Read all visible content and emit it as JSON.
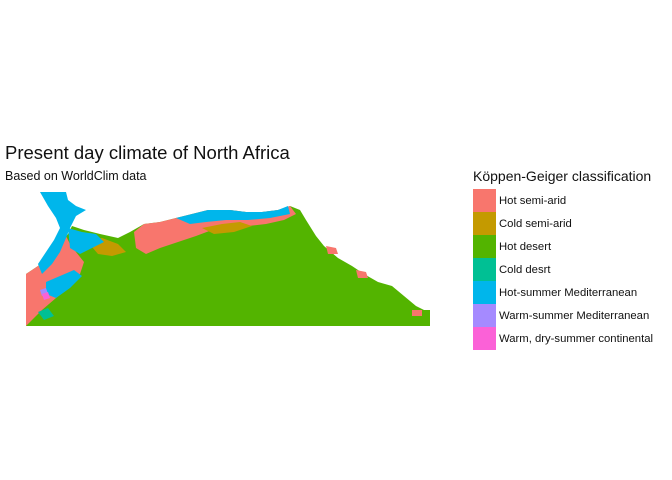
{
  "title": "Present day climate of North Africa",
  "subtitle": "Based on WorldClim data",
  "legend": {
    "title": "Köppen-Geiger classification",
    "items": [
      {
        "label": "Hot semi-arid",
        "color": "#F8766D"
      },
      {
        "label": "Cold semi-arid",
        "color": "#C49A00"
      },
      {
        "label": "Hot desert",
        "color": "#53B400"
      },
      {
        "label": "Cold desrt",
        "color": "#00C094"
      },
      {
        "label": "Hot-summer Mediterranean",
        "color": "#00B6EB"
      },
      {
        "label": "Warm-summer Mediterranean",
        "color": "#A58AFF"
      },
      {
        "label": "Warm, dry-summer continental",
        "color": "#FB61D7"
      }
    ]
  },
  "colors": {
    "sea": "#ffffff"
  }
}
